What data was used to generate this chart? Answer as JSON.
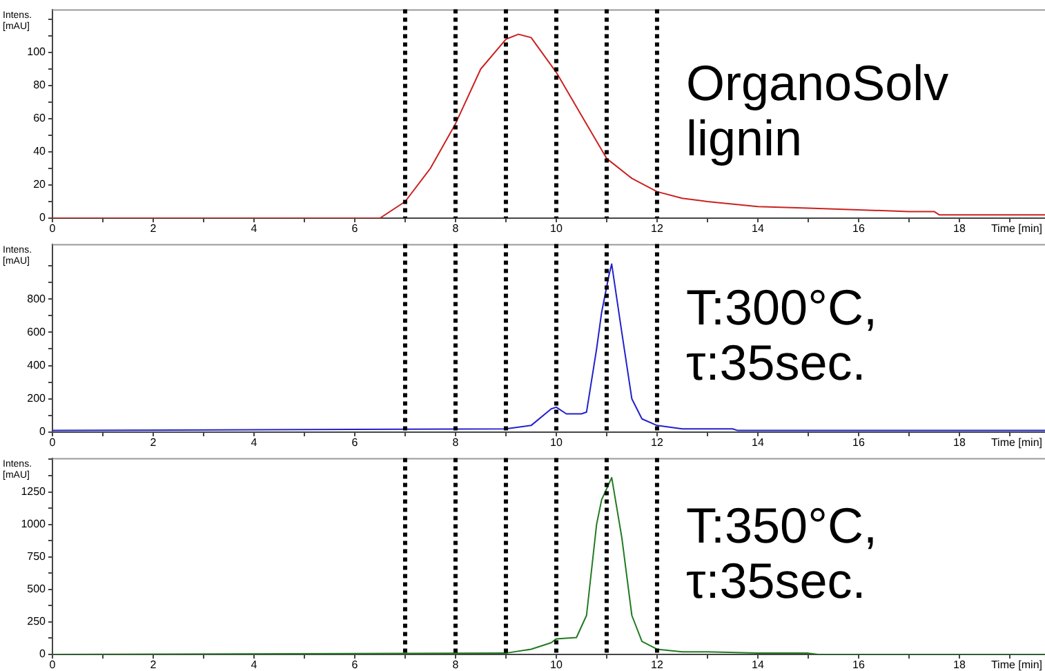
{
  "chart_data": [
    {
      "type": "line",
      "xlabel": "Time [min]",
      "ylabel": "Intens.\n[mAU]",
      "annotations": [
        "OrganoSolv\nlignin"
      ],
      "marker": "none",
      "legend": false,
      "grid": false,
      "xlim": [
        0,
        19.7
      ],
      "xticks": [
        0,
        {
          "value": 1,
          "label": null
        },
        2,
        {
          "value": 3,
          "label": null
        },
        4,
        {
          "value": 5,
          "label": null
        },
        6,
        {
          "value": 7,
          "label": null
        },
        8,
        {
          "value": 9,
          "label": null
        },
        10,
        {
          "value": 11,
          "label": null
        },
        12,
        {
          "value": 13,
          "label": null
        },
        14,
        {
          "value": 15,
          "label": null
        },
        16,
        {
          "value": 17,
          "label": null
        },
        18,
        {
          "value": 19,
          "label": null
        }
      ],
      "ylim": [
        0,
        126
      ],
      "yticks": [
        0,
        {
          "value": 10,
          "label": null
        },
        20,
        {
          "value": 30,
          "label": null
        },
        40,
        {
          "value": 50,
          "label": null
        },
        60,
        {
          "value": 70,
          "label": null
        },
        80,
        {
          "value": 90,
          "label": null
        },
        100,
        {
          "value": 110,
          "label": null
        },
        {
          "value": 120,
          "label": null
        }
      ],
      "ref_lines": [
        {
          "axis": "x",
          "value": 7,
          "color": "#000000",
          "line_style": "dotted"
        },
        {
          "axis": "x",
          "value": 8,
          "color": "#000000",
          "line_style": "dotted"
        },
        {
          "axis": "x",
          "value": 9,
          "color": "#000000",
          "line_style": "dotted"
        },
        {
          "axis": "x",
          "value": 10,
          "color": "#000000",
          "line_style": "dotted"
        },
        {
          "axis": "x",
          "value": 11,
          "color": "#000000",
          "line_style": "dotted"
        },
        {
          "axis": "x",
          "value": 12,
          "color": "#000000",
          "line_style": "dotted"
        }
      ],
      "series": [
        {
          "color": "#cc2020",
          "x": [
            0,
            6.5,
            7,
            7.5,
            8,
            8.5,
            9,
            9.25,
            9.5,
            10,
            10.5,
            11,
            11.5,
            12,
            12.5,
            13,
            14,
            15,
            16,
            17,
            17.5,
            17.6,
            19.7
          ],
          "values": [
            0,
            0,
            10,
            30,
            57,
            90,
            108,
            111,
            109,
            88,
            62,
            36,
            24,
            16,
            12,
            10,
            7,
            6,
            5,
            4,
            4,
            2,
            2
          ]
        }
      ]
    },
    {
      "type": "line",
      "xlabel": "Time [min]",
      "ylabel": "Intens.\n[mAU]",
      "annotations": [
        "T:300°C,\nτ:35sec."
      ],
      "marker": "none",
      "legend": false,
      "grid": false,
      "xlim": [
        0,
        19.7
      ],
      "xticks": [
        0,
        {
          "value": 1,
          "label": null
        },
        2,
        {
          "value": 3,
          "label": null
        },
        4,
        {
          "value": 5,
          "label": null
        },
        6,
        {
          "value": 7,
          "label": null
        },
        8,
        {
          "value": 9,
          "label": null
        },
        10,
        {
          "value": 11,
          "label": null
        },
        12,
        {
          "value": 13,
          "label": null
        },
        14,
        {
          "value": 15,
          "label": null
        },
        16,
        {
          "value": 17,
          "label": null
        },
        18,
        {
          "value": 19,
          "label": null
        }
      ],
      "ylim": [
        0,
        1130
      ],
      "yticks": [
        0,
        {
          "value": 100,
          "label": null
        },
        200,
        {
          "value": 300,
          "label": null
        },
        400,
        {
          "value": 500,
          "label": null
        },
        600,
        {
          "value": 700,
          "label": null
        },
        800,
        {
          "value": 900,
          "label": null
        },
        {
          "value": 1000,
          "label": null
        }
      ],
      "ref_lines": [
        {
          "axis": "x",
          "value": 7,
          "color": "#000000",
          "line_style": "dotted"
        },
        {
          "axis": "x",
          "value": 8,
          "color": "#000000",
          "line_style": "dotted"
        },
        {
          "axis": "x",
          "value": 9,
          "color": "#000000",
          "line_style": "dotted"
        },
        {
          "axis": "x",
          "value": 10,
          "color": "#000000",
          "line_style": "dotted"
        },
        {
          "axis": "x",
          "value": 11,
          "color": "#000000",
          "line_style": "dotted"
        },
        {
          "axis": "x",
          "value": 12,
          "color": "#000000",
          "line_style": "dotted"
        }
      ],
      "series": [
        {
          "color": "#2020cc",
          "x": [
            0,
            9,
            9.5,
            9.9,
            10,
            10.2,
            10.5,
            10.6,
            10.8,
            10.9,
            11.05,
            11.1,
            11.3,
            11.5,
            11.7,
            12,
            12.5,
            13,
            13.5,
            13.6,
            19.7
          ],
          "values": [
            10,
            20,
            40,
            140,
            150,
            110,
            110,
            120,
            500,
            720,
            950,
            1010,
            600,
            200,
            80,
            40,
            20,
            20,
            20,
            10,
            10
          ]
        }
      ]
    },
    {
      "type": "line",
      "xlabel": "Time [min]",
      "ylabel": "Intens.\n[mAU]",
      "annotations": [
        "T:350°C,\nτ:35sec."
      ],
      "marker": "none",
      "legend": false,
      "grid": false,
      "xlim": [
        0,
        19.7
      ],
      "xticks": [
        0,
        {
          "value": 1,
          "label": null
        },
        2,
        {
          "value": 3,
          "label": null
        },
        4,
        {
          "value": 5,
          "label": null
        },
        6,
        {
          "value": 7,
          "label": null
        },
        8,
        {
          "value": 9,
          "label": null
        },
        10,
        {
          "value": 11,
          "label": null
        },
        12,
        {
          "value": 13,
          "label": null
        },
        14,
        {
          "value": 15,
          "label": null
        },
        16,
        {
          "value": 17,
          "label": null
        },
        18,
        {
          "value": 19,
          "label": null
        }
      ],
      "ylim": [
        0,
        1510
      ],
      "yticks": [
        0,
        {
          "value": 125,
          "label": null
        },
        250,
        {
          "value": 375,
          "label": null
        },
        500,
        {
          "value": 625,
          "label": null
        },
        750,
        {
          "value": 875,
          "label": null
        },
        1000,
        {
          "value": 1125,
          "label": null
        },
        1250,
        {
          "value": 1375,
          "label": null
        },
        {
          "value": 1500,
          "label": null
        }
      ],
      "ref_lines": [
        {
          "axis": "x",
          "value": 7,
          "color": "#000000",
          "line_style": "dotted"
        },
        {
          "axis": "x",
          "value": 8,
          "color": "#000000",
          "line_style": "dotted"
        },
        {
          "axis": "x",
          "value": 9,
          "color": "#000000",
          "line_style": "dotted"
        },
        {
          "axis": "x",
          "value": 10,
          "color": "#000000",
          "line_style": "dotted"
        },
        {
          "axis": "x",
          "value": 11,
          "color": "#000000",
          "line_style": "dotted"
        },
        {
          "axis": "x",
          "value": 12,
          "color": "#000000",
          "line_style": "dotted"
        }
      ],
      "series": [
        {
          "color": "#207a20",
          "x": [
            0,
            9,
            9.5,
            9.9,
            10,
            10.4,
            10.6,
            10.8,
            10.9,
            11.1,
            11.3,
            11.5,
            11.7,
            12,
            12.5,
            13,
            14,
            15,
            15.2,
            19.7
          ],
          "values": [
            0,
            10,
            40,
            90,
            120,
            130,
            300,
            1000,
            1190,
            1360,
            900,
            300,
            100,
            40,
            20,
            20,
            10,
            10,
            0,
            0
          ]
        }
      ]
    }
  ]
}
